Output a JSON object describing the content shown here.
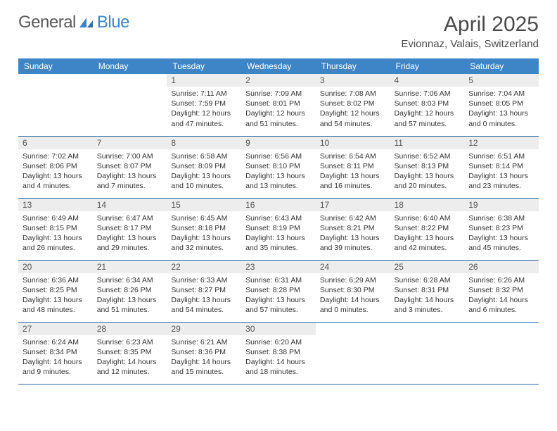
{
  "logo": {
    "word1": "General",
    "word2": "Blue"
  },
  "title": "April 2025",
  "location": "Evionnaz, Valais, Switzerland",
  "colors": {
    "header_bg": "#3d85c6",
    "header_text": "#ffffff",
    "daynum_bg": "#ededed",
    "row_border": "#2f6fa8",
    "logo_accent": "#3d85c6"
  },
  "headers": [
    "Sunday",
    "Monday",
    "Tuesday",
    "Wednesday",
    "Thursday",
    "Friday",
    "Saturday"
  ],
  "layout": {
    "first_weekday_index": 2,
    "days_in_month": 30
  },
  "days": {
    "1": {
      "sunrise": "7:11 AM",
      "sunset": "7:59 PM",
      "daylight": "12 hours and 47 minutes."
    },
    "2": {
      "sunrise": "7:09 AM",
      "sunset": "8:01 PM",
      "daylight": "12 hours and 51 minutes."
    },
    "3": {
      "sunrise": "7:08 AM",
      "sunset": "8:02 PM",
      "daylight": "12 hours and 54 minutes."
    },
    "4": {
      "sunrise": "7:06 AM",
      "sunset": "8:03 PM",
      "daylight": "12 hours and 57 minutes."
    },
    "5": {
      "sunrise": "7:04 AM",
      "sunset": "8:05 PM",
      "daylight": "13 hours and 0 minutes."
    },
    "6": {
      "sunrise": "7:02 AM",
      "sunset": "8:06 PM",
      "daylight": "13 hours and 4 minutes."
    },
    "7": {
      "sunrise": "7:00 AM",
      "sunset": "8:07 PM",
      "daylight": "13 hours and 7 minutes."
    },
    "8": {
      "sunrise": "6:58 AM",
      "sunset": "8:09 PM",
      "daylight": "13 hours and 10 minutes."
    },
    "9": {
      "sunrise": "6:56 AM",
      "sunset": "8:10 PM",
      "daylight": "13 hours and 13 minutes."
    },
    "10": {
      "sunrise": "6:54 AM",
      "sunset": "8:11 PM",
      "daylight": "13 hours and 16 minutes."
    },
    "11": {
      "sunrise": "6:52 AM",
      "sunset": "8:13 PM",
      "daylight": "13 hours and 20 minutes."
    },
    "12": {
      "sunrise": "6:51 AM",
      "sunset": "8:14 PM",
      "daylight": "13 hours and 23 minutes."
    },
    "13": {
      "sunrise": "6:49 AM",
      "sunset": "8:15 PM",
      "daylight": "13 hours and 26 minutes."
    },
    "14": {
      "sunrise": "6:47 AM",
      "sunset": "8:17 PM",
      "daylight": "13 hours and 29 minutes."
    },
    "15": {
      "sunrise": "6:45 AM",
      "sunset": "8:18 PM",
      "daylight": "13 hours and 32 minutes."
    },
    "16": {
      "sunrise": "6:43 AM",
      "sunset": "8:19 PM",
      "daylight": "13 hours and 35 minutes."
    },
    "17": {
      "sunrise": "6:42 AM",
      "sunset": "8:21 PM",
      "daylight": "13 hours and 39 minutes."
    },
    "18": {
      "sunrise": "6:40 AM",
      "sunset": "8:22 PM",
      "daylight": "13 hours and 42 minutes."
    },
    "19": {
      "sunrise": "6:38 AM",
      "sunset": "8:23 PM",
      "daylight": "13 hours and 45 minutes."
    },
    "20": {
      "sunrise": "6:36 AM",
      "sunset": "8:25 PM",
      "daylight": "13 hours and 48 minutes."
    },
    "21": {
      "sunrise": "6:34 AM",
      "sunset": "8:26 PM",
      "daylight": "13 hours and 51 minutes."
    },
    "22": {
      "sunrise": "6:33 AM",
      "sunset": "8:27 PM",
      "daylight": "13 hours and 54 minutes."
    },
    "23": {
      "sunrise": "6:31 AM",
      "sunset": "8:28 PM",
      "daylight": "13 hours and 57 minutes."
    },
    "24": {
      "sunrise": "6:29 AM",
      "sunset": "8:30 PM",
      "daylight": "14 hours and 0 minutes."
    },
    "25": {
      "sunrise": "6:28 AM",
      "sunset": "8:31 PM",
      "daylight": "14 hours and 3 minutes."
    },
    "26": {
      "sunrise": "6:26 AM",
      "sunset": "8:32 PM",
      "daylight": "14 hours and 6 minutes."
    },
    "27": {
      "sunrise": "6:24 AM",
      "sunset": "8:34 PM",
      "daylight": "14 hours and 9 minutes."
    },
    "28": {
      "sunrise": "6:23 AM",
      "sunset": "8:35 PM",
      "daylight": "14 hours and 12 minutes."
    },
    "29": {
      "sunrise": "6:21 AM",
      "sunset": "8:36 PM",
      "daylight": "14 hours and 15 minutes."
    },
    "30": {
      "sunrise": "6:20 AM",
      "sunset": "8:38 PM",
      "daylight": "14 hours and 18 minutes."
    }
  },
  "labels": {
    "sunrise": "Sunrise:",
    "sunset": "Sunset:",
    "daylight": "Daylight:"
  },
  "typography": {
    "title_fontsize": 30,
    "location_fontsize": 15,
    "header_fontsize": 12,
    "daynum_fontsize": 12,
    "body_fontsize": 10.5
  }
}
